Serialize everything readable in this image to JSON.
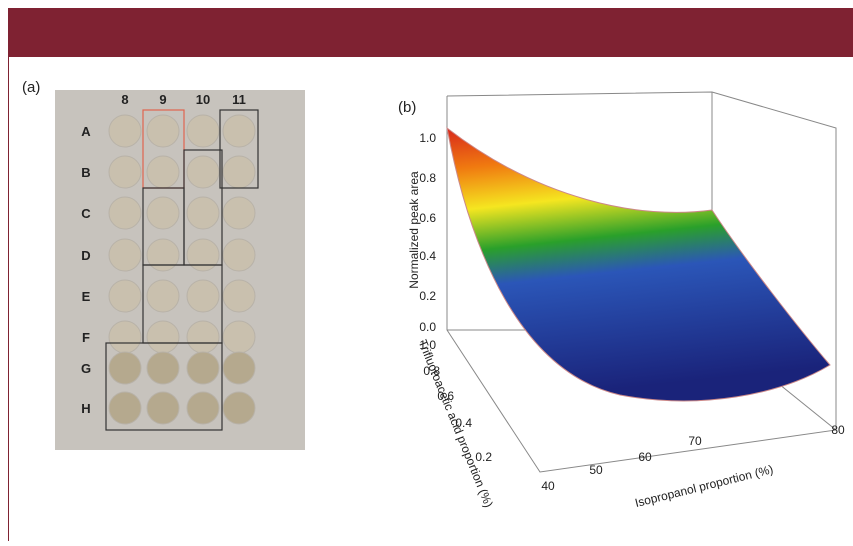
{
  "panel_a": {
    "label": "(a)",
    "columns": [
      "8",
      "9",
      "10",
      "11"
    ],
    "rows": [
      "A",
      "B",
      "C",
      "D",
      "E",
      "F",
      "G",
      "H"
    ]
  },
  "panel_b": {
    "label": "(b)",
    "z_axis_title": "Normalized peak area",
    "z_ticks": [
      "1.0",
      "0.8",
      "0.6",
      "0.4",
      "0.2",
      "0.0"
    ],
    "y_axis_title": "Trifluoroacetic acid proportion (%)",
    "y_ticks": [
      "1.0",
      "0.8",
      "0.6",
      "0.4",
      "0.2"
    ],
    "x_axis_title": "Isopropanol proportion (%)",
    "x_ticks": [
      "40",
      "50",
      "60",
      "70",
      "80"
    ]
  }
}
